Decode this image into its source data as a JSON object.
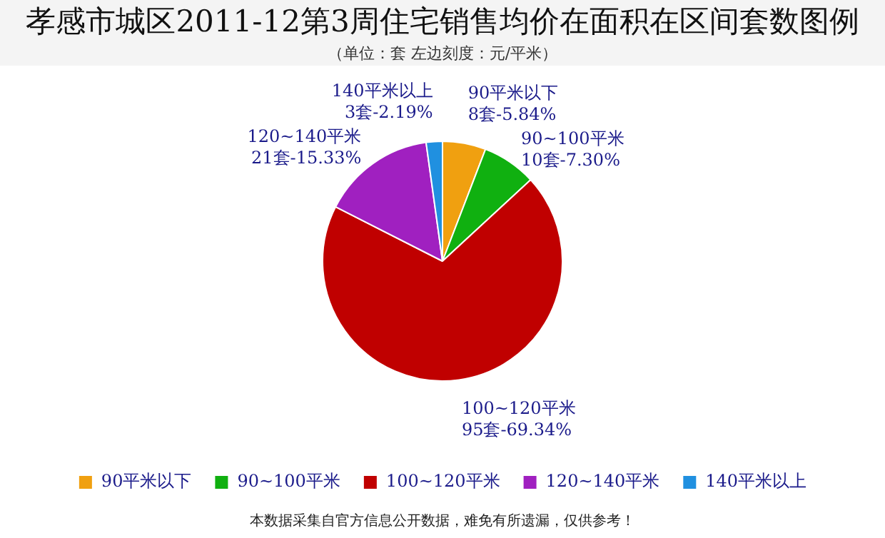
{
  "chart_data": {
    "type": "pie",
    "title": "孝感市城区2011-12第3周住宅销售均价在面积在区间套数图例",
    "subtitle": "（单位：套 左边刻度：元/平米）",
    "categories": [
      "90平米以下",
      "90~100平米",
      "100~120平米",
      "120~140平米",
      "140平米以上"
    ],
    "values": [
      8,
      10,
      95,
      21,
      3
    ],
    "value_labels": [
      "8套-5.84%",
      "10套-7.30%",
      "95套-69.34%",
      "21套-15.33%",
      "3套-2.19%"
    ],
    "colors": [
      "#f0a010",
      "#10b010",
      "#c00000",
      "#a020c0",
      "#2090e0"
    ],
    "legend": "bottom",
    "annotations": [
      "本数据采集自官方信息公开数据，难免有所遗漏，仅供参考！"
    ]
  }
}
